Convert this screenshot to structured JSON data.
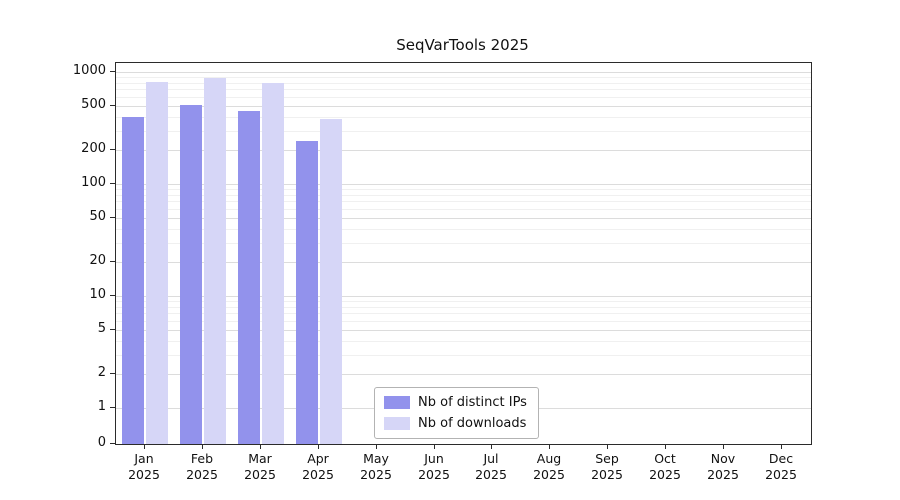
{
  "chart_data": {
    "type": "bar",
    "title": "SeqVarTools 2025",
    "categories": [
      "Jan 2025",
      "Feb 2025",
      "Mar 2025",
      "Apr 2025",
      "May 2025",
      "Jun 2025",
      "Jul 2025",
      "Aug 2025",
      "Sep 2025",
      "Oct 2025",
      "Nov 2025",
      "Dec 2025"
    ],
    "series": [
      {
        "name": "Nb of distinct IPs",
        "color": "#9292ec",
        "values": [
          400,
          505,
          450,
          240,
          null,
          null,
          null,
          null,
          null,
          null,
          null,
          null
        ]
      },
      {
        "name": "Nb of downloads",
        "color": "#d6d6f7",
        "values": [
          820,
          875,
          790,
          380,
          null,
          null,
          null,
          null,
          null,
          null,
          null,
          null
        ]
      }
    ],
    "yscale": "log",
    "yticks": [
      0,
      1,
      2,
      5,
      10,
      20,
      50,
      100,
      200,
      500,
      1000
    ],
    "ylim": [
      0,
      1200
    ],
    "xlabel": "",
    "ylabel": "",
    "grid": true,
    "legend_position": "bottom-center-inside"
  }
}
